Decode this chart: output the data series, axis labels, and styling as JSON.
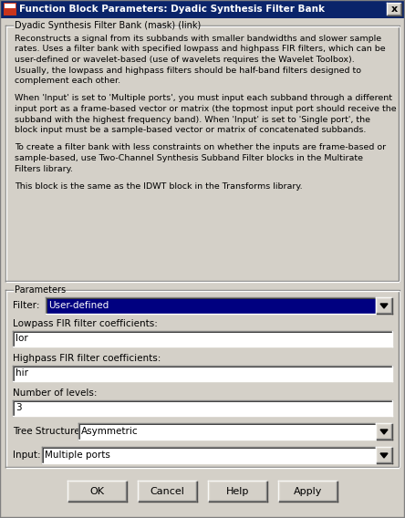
{
  "title": "Function Block Parameters: Dyadic Synthesis Filter Bank",
  "bg_color": "#d4d0c8",
  "title_bar_color": "#0a246a",
  "group1_label": "Dyadic Synthesis Filter Bank (mask) (link)",
  "desc_paragraphs": [
    "Reconstructs a signal from its subbands with smaller bandwidths and slower sample\nrates. Uses a filter bank with specified lowpass and highpass FIR filters, which can be\nuser-defined or wavelet-based (use of wavelets requires the Wavelet Toolbox).\nUsually, the lowpass and highpass filters should be half-band filters designed to\ncomplement each other.",
    "When 'Input' is set to 'Multiple ports', you must input each subband through a different\ninput port as a frame-based vector or matrix (the topmost input port should receive the\nsubband with the highest frequency band). When 'Input' is set to 'Single port', the\nblock input must be a sample-based vector or matrix of concatenated subbands.",
    "To create a filter bank with less constraints on whether the inputs are frame-based or\nsample-based, use Two-Channel Synthesis Subband Filter blocks in the Multirate\nFilters library.",
    "This block is the same as the IDWT block in the Transforms library."
  ],
  "group2_label": "Parameters",
  "filter_label": "Filter:",
  "filter_value": "User-defined",
  "filter_dropdown_bg": "#000080",
  "filter_dropdown_text": "#ffffff",
  "lowpass_label": "Lowpass FIR filter coefficients:",
  "lowpass_value": "lor",
  "highpass_label": "Highpass FIR filter coefficients:",
  "highpass_value": "hir",
  "levels_label": "Number of levels:",
  "levels_value": "3",
  "tree_label": "Tree Structure:",
  "tree_value": "Asymmetric",
  "input_label": "Input:",
  "input_value": "Multiple ports",
  "btn_ok": "_OK",
  "btn_cancel": "_Cancel",
  "btn_help": "_Help",
  "btn_apply": "Apply"
}
